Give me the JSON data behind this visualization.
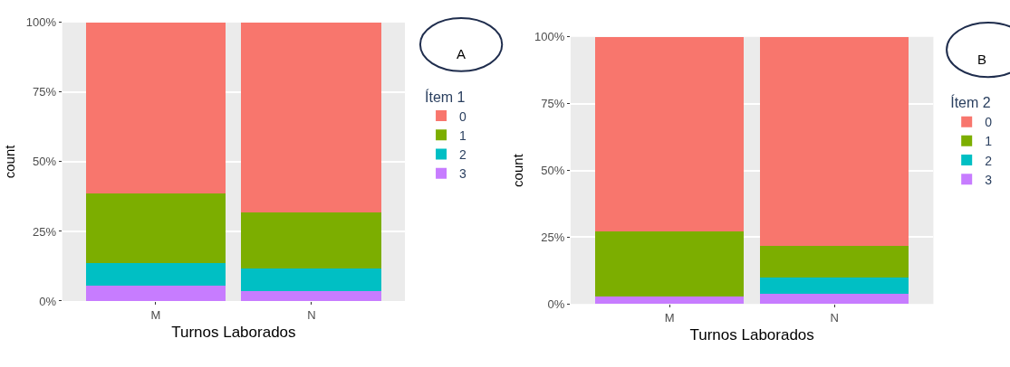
{
  "chart_data": [
    {
      "type": "bar",
      "stacked": true,
      "categories": [
        "M",
        "N"
      ],
      "xlabel": "Turnos Laborados",
      "ylabel": "count",
      "legend_title": "Ítem 1",
      "legend": "right",
      "grid": true,
      "annotations": [
        "A"
      ],
      "ylim": [
        0,
        100
      ],
      "yticks": [
        {
          "value": 0,
          "label": "0%"
        },
        {
          "value": 25,
          "label": "25%"
        },
        {
          "value": 50,
          "label": "50%"
        },
        {
          "value": 75,
          "label": "75%"
        },
        {
          "value": 100,
          "label": "100%"
        }
      ],
      "series": [
        {
          "name": "3",
          "color": "#c77cff",
          "values": [
            5.5,
            3.5
          ]
        },
        {
          "name": "2",
          "color": "#00bfc4",
          "values": [
            8,
            8.3
          ]
        },
        {
          "name": "1",
          "color": "#7cae00",
          "values": [
            25,
            20
          ]
        },
        {
          "name": "0",
          "color": "#f8766d",
          "values": [
            61.5,
            68.2
          ]
        }
      ]
    },
    {
      "type": "bar",
      "stacked": true,
      "categories": [
        "M",
        "N"
      ],
      "xlabel": "Turnos Laborados",
      "ylabel": "count",
      "legend_title": "Ítem 2",
      "legend": "right",
      "grid": true,
      "annotations": [
        "B"
      ],
      "ylim": [
        0,
        100
      ],
      "yticks": [
        {
          "value": 0,
          "label": "0%"
        },
        {
          "value": 25,
          "label": "25%"
        },
        {
          "value": 50,
          "label": "50%"
        },
        {
          "value": 75,
          "label": "75%"
        },
        {
          "value": 100,
          "label": "100%"
        }
      ],
      "series": [
        {
          "name": "3",
          "color": "#c77cff",
          "values": [
            2.7,
            3.7
          ]
        },
        {
          "name": "2",
          "color": "#00bfc4",
          "values": [
            0,
            6.3
          ]
        },
        {
          "name": "1",
          "color": "#7cae00",
          "values": [
            24.5,
            11.8
          ]
        },
        {
          "name": "0",
          "color": "#f8766d",
          "values": [
            72.8,
            78.2
          ]
        }
      ]
    }
  ]
}
